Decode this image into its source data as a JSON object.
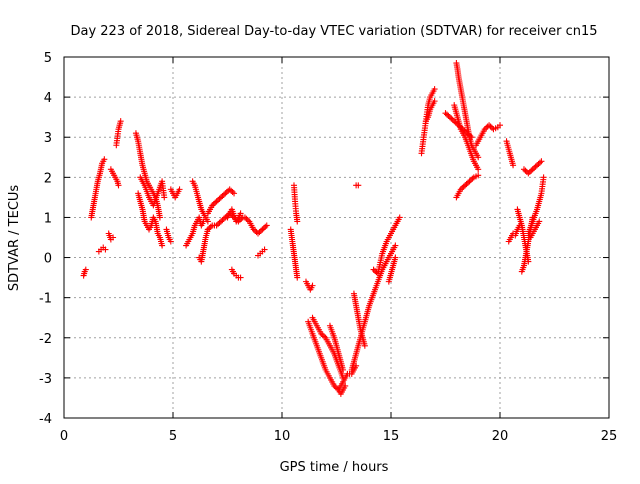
{
  "chart_data": {
    "type": "scatter",
    "title": "Day 223 of 2018, Sidereal Day-to-day VTEC variation (SDTVAR) for receiver cn15",
    "xlabel": "GPS time / hours",
    "ylabel": "SDTVAR / TECUs",
    "xlim": [
      0,
      25
    ],
    "ylim": [
      -4,
      5
    ],
    "xticks": [
      0,
      5,
      10,
      15,
      20,
      25
    ],
    "yticks": [
      -4,
      -3,
      -2,
      -1,
      0,
      1,
      2,
      3,
      4,
      5
    ],
    "grid": true,
    "legend": "none",
    "marker": "plus",
    "color": "#ff0000",
    "segments": [
      {
        "x": [
          0.9,
          0.95,
          1.0
        ],
        "y": [
          -0.45,
          -0.35,
          -0.3
        ]
      },
      {
        "x": [
          1.25,
          1.35,
          1.45,
          1.55,
          1.65,
          1.75,
          1.85
        ],
        "y": [
          1.0,
          1.3,
          1.6,
          1.9,
          2.1,
          2.35,
          2.45
        ]
      },
      {
        "x": [
          1.6,
          1.7,
          1.8,
          1.9
        ],
        "y": [
          0.15,
          0.2,
          0.25,
          0.2
        ]
      },
      {
        "x": [
          2.05,
          2.15,
          2.25
        ],
        "y": [
          0.6,
          0.45,
          0.5
        ]
      },
      {
        "x": [
          2.15,
          2.25,
          2.35,
          2.45,
          2.5
        ],
        "y": [
          2.2,
          2.1,
          2.0,
          1.9,
          1.8
        ]
      },
      {
        "x": [
          2.4,
          2.5,
          2.6
        ],
        "y": [
          2.8,
          3.2,
          3.4
        ]
      },
      {
        "x": [
          3.3,
          3.4,
          3.5,
          3.6,
          3.7,
          3.8,
          3.9,
          4.0,
          4.1,
          4.2,
          4.3,
          4.4
        ],
        "y": [
          3.1,
          2.9,
          2.6,
          2.3,
          2.1,
          1.9,
          1.8,
          1.7,
          1.6,
          1.5,
          1.3,
          1.0
        ]
      },
      {
        "x": [
          3.4,
          3.5,
          3.6,
          3.7,
          3.8,
          3.9,
          4.0,
          4.1,
          4.2,
          4.3,
          4.4,
          4.5
        ],
        "y": [
          1.6,
          1.4,
          1.2,
          0.9,
          0.8,
          0.7,
          0.8,
          1.0,
          0.9,
          0.6,
          0.5,
          0.3
        ]
      },
      {
        "x": [
          3.5,
          3.7,
          3.9,
          4.1,
          4.3,
          4.5,
          4.6
        ],
        "y": [
          2.0,
          1.8,
          1.5,
          1.3,
          1.6,
          1.9,
          1.5
        ]
      },
      {
        "x": [
          4.7,
          4.8,
          4.9
        ],
        "y": [
          0.7,
          0.5,
          0.4
        ]
      },
      {
        "x": [
          4.9,
          5.0,
          5.1,
          5.2,
          5.3
        ],
        "y": [
          1.7,
          1.6,
          1.5,
          1.6,
          1.7
        ]
      },
      {
        "x": [
          5.6,
          5.7,
          5.8,
          5.9,
          6.0,
          6.1,
          6.2,
          6.3,
          6.4
        ],
        "y": [
          0.3,
          0.4,
          0.5,
          0.6,
          0.8,
          0.9,
          1.0,
          0.8,
          0.9
        ]
      },
      {
        "x": [
          5.9,
          6.0,
          6.1,
          6.2,
          6.3,
          6.4,
          6.5,
          6.6
        ],
        "y": [
          1.9,
          1.8,
          1.6,
          1.4,
          1.2,
          1.1,
          1.0,
          0.9
        ]
      },
      {
        "x": [
          6.2,
          6.3,
          6.4,
          6.5,
          6.6
        ],
        "y": [
          0.0,
          -0.1,
          0.2,
          0.5,
          0.7
        ]
      },
      {
        "x": [
          6.6,
          6.8,
          7.0,
          7.2,
          7.4,
          7.6,
          7.8
        ],
        "y": [
          1.1,
          1.3,
          1.4,
          1.5,
          1.6,
          1.7,
          1.6
        ]
      },
      {
        "x": [
          6.6,
          6.8,
          7.0,
          7.2,
          7.4,
          7.6,
          7.8,
          8.0,
          8.2
        ],
        "y": [
          0.7,
          0.8,
          0.8,
          0.9,
          1.0,
          1.1,
          1.0,
          0.9,
          1.0
        ]
      },
      {
        "x": [
          7.5,
          7.7,
          7.9,
          8.1
        ],
        "y": [
          1.0,
          1.2,
          0.9,
          1.1
        ]
      },
      {
        "x": [
          7.7,
          7.8,
          7.9,
          8.0,
          8.1
        ],
        "y": [
          -0.3,
          -0.4,
          -0.45,
          -0.5,
          -0.5
        ]
      },
      {
        "x": [
          8.3,
          8.5,
          8.7,
          8.9,
          9.1,
          9.3
        ],
        "y": [
          1.0,
          0.9,
          0.7,
          0.6,
          0.7,
          0.8
        ]
      },
      {
        "x": [
          8.9,
          9.0,
          9.1,
          9.2
        ],
        "y": [
          0.05,
          0.1,
          0.15,
          0.2
        ]
      },
      {
        "x": [
          10.4,
          10.45,
          10.5,
          10.55,
          10.6,
          10.65,
          10.7
        ],
        "y": [
          0.7,
          0.5,
          0.3,
          0.1,
          -0.1,
          -0.3,
          -0.5
        ]
      },
      {
        "x": [
          10.55,
          10.6,
          10.65,
          10.7
        ],
        "y": [
          1.8,
          1.4,
          1.1,
          0.9
        ]
      },
      {
        "x": [
          11.1,
          11.2,
          11.3,
          11.4
        ],
        "y": [
          -0.6,
          -0.7,
          -0.8,
          -0.7
        ]
      },
      {
        "x": [
          11.2,
          11.4,
          11.6,
          11.8,
          12.0,
          12.2,
          12.4,
          12.6,
          12.8,
          13.0,
          13.2,
          13.4
        ],
        "y": [
          -1.6,
          -1.9,
          -2.2,
          -2.5,
          -2.8,
          -3.0,
          -3.2,
          -3.3,
          -3.1,
          -2.9,
          -2.9,
          -2.7
        ]
      },
      {
        "x": [
          11.4,
          11.6,
          11.8,
          12.0,
          12.2,
          12.4,
          12.6,
          12.8
        ],
        "y": [
          -1.5,
          -1.7,
          -1.9,
          -2.0,
          -2.2,
          -2.4,
          -2.7,
          -3.0
        ]
      },
      {
        "x": [
          12.2,
          12.4,
          12.6,
          12.8
        ],
        "y": [
          -1.7,
          -2.0,
          -2.4,
          -2.8
        ]
      },
      {
        "x": [
          12.6,
          12.7,
          12.8,
          12.9
        ],
        "y": [
          -3.3,
          -3.4,
          -3.3,
          -3.2
        ]
      },
      {
        "x": [
          13.4,
          13.5
        ],
        "y": [
          1.8,
          1.8
        ]
      },
      {
        "x": [
          13.2,
          13.4,
          13.6,
          13.8,
          14.0,
          14.2,
          14.4,
          14.6,
          14.8,
          15.0,
          15.2
        ],
        "y": [
          -2.8,
          -2.4,
          -2.0,
          -1.6,
          -1.2,
          -0.9,
          -0.6,
          -0.3,
          -0.1,
          0.1,
          0.3
        ]
      },
      {
        "x": [
          13.3,
          13.4,
          13.5,
          13.6,
          13.7,
          13.8
        ],
        "y": [
          -0.9,
          -1.2,
          -1.5,
          -1.8,
          -2.0,
          -2.2
        ]
      },
      {
        "x": [
          14.2,
          14.4,
          14.6,
          14.8,
          15.0,
          15.2,
          15.4
        ],
        "y": [
          -0.3,
          -0.4,
          0.1,
          0.4,
          0.6,
          0.8,
          1.0
        ]
      },
      {
        "x": [
          14.9,
          15.0,
          15.1,
          15.2
        ],
        "y": [
          -0.6,
          -0.4,
          -0.2,
          0.0
        ]
      },
      {
        "x": [
          16.4,
          16.5,
          16.6,
          16.7,
          16.8,
          16.9,
          17.0
        ],
        "y": [
          2.6,
          3.0,
          3.4,
          3.8,
          4.0,
          4.1,
          4.2
        ]
      },
      {
        "x": [
          16.6,
          16.7,
          16.8,
          16.9,
          17.0
        ],
        "y": [
          3.4,
          3.5,
          3.7,
          3.8,
          3.9
        ]
      },
      {
        "x": [
          17.5,
          17.7,
          17.9,
          18.1,
          18.3,
          18.5,
          18.7
        ],
        "y": [
          3.6,
          3.5,
          3.4,
          3.3,
          3.2,
          3.1,
          3.0
        ]
      },
      {
        "x": [
          18.0,
          18.05,
          18.1,
          18.2,
          18.3,
          18.4,
          18.5,
          18.6,
          18.7,
          18.8,
          18.9,
          19.0
        ],
        "y": [
          4.85,
          4.7,
          4.5,
          4.2,
          3.9,
          3.6,
          3.3,
          3.0,
          2.8,
          2.7,
          2.6,
          2.5
        ]
      },
      {
        "x": [
          17.9,
          18.0,
          18.1,
          18.2,
          18.4,
          18.6,
          18.8,
          19.0
        ],
        "y": [
          3.8,
          3.6,
          3.4,
          3.2,
          3.0,
          2.7,
          2.4,
          2.2
        ]
      },
      {
        "x": [
          18.0,
          18.2,
          18.4,
          18.6,
          18.8,
          19.0
        ],
        "y": [
          1.5,
          1.7,
          1.8,
          1.9,
          2.0,
          2.05
        ]
      },
      {
        "x": [
          18.9,
          19.1,
          19.3,
          19.5,
          19.7,
          19.9,
          20.0
        ],
        "y": [
          2.8,
          3.0,
          3.2,
          3.3,
          3.2,
          3.25,
          3.3
        ]
      },
      {
        "x": [
          20.3,
          20.4,
          20.5,
          20.6
        ],
        "y": [
          2.9,
          2.7,
          2.5,
          2.3
        ]
      },
      {
        "x": [
          20.4,
          20.5,
          20.6,
          20.7,
          20.8,
          20.9
        ],
        "y": [
          0.4,
          0.5,
          0.6,
          0.55,
          0.7,
          0.8
        ]
      },
      {
        "x": [
          20.8,
          20.9,
          21.0,
          21.1,
          21.2,
          21.3
        ],
        "y": [
          1.2,
          1.0,
          0.8,
          0.5,
          0.2,
          -0.1
        ]
      },
      {
        "x": [
          21.0,
          21.1,
          21.2,
          21.3,
          21.4,
          21.5
        ],
        "y": [
          -0.35,
          -0.2,
          0.1,
          0.4,
          0.7,
          1.0
        ]
      },
      {
        "x": [
          21.1,
          21.3,
          21.5,
          21.7,
          21.9
        ],
        "y": [
          2.2,
          2.1,
          2.2,
          2.3,
          2.4
        ]
      },
      {
        "x": [
          21.3,
          21.5,
          21.7,
          21.9,
          22.0
        ],
        "y": [
          0.6,
          0.9,
          1.2,
          1.6,
          2.0
        ]
      },
      {
        "x": [
          21.4,
          21.6,
          21.8
        ],
        "y": [
          0.5,
          0.7,
          0.9
        ]
      }
    ]
  }
}
